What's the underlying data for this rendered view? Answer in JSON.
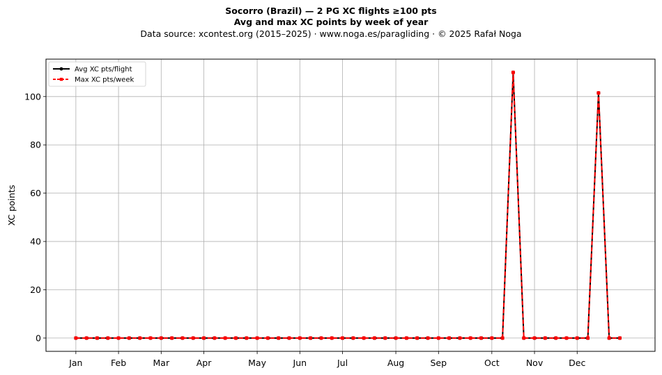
{
  "header": {
    "title_line1": "Socorro (Brazil)  —  2 PG XC flights ≥100 pts",
    "title_line2": "Avg and max XC points by week of year",
    "subtitle": "Data source: xcontest.org (2015–2025)  ·  www.noga.es/paragliding  ·  © 2025 Rafał Noga"
  },
  "chart_data": {
    "type": "line",
    "title": "Socorro (Brazil)  —  2 PG XC flights ≥100 pts",
    "subtitle": "Avg and max XC points by week of year",
    "xlabel": "",
    "ylabel": "XC points",
    "x": [
      1,
      2,
      3,
      4,
      5,
      6,
      7,
      8,
      9,
      10,
      11,
      12,
      13,
      14,
      15,
      16,
      17,
      18,
      19,
      20,
      21,
      22,
      23,
      24,
      25,
      26,
      27,
      28,
      29,
      30,
      31,
      32,
      33,
      34,
      35,
      36,
      37,
      38,
      39,
      40,
      41,
      42,
      43,
      44,
      45,
      46,
      47,
      48,
      49,
      50,
      51,
      52
    ],
    "xlim": [
      -1.8,
      55.3
    ],
    "ylim": [
      -5.5,
      115.5
    ],
    "yticks": [
      0,
      20,
      40,
      60,
      80,
      100
    ],
    "xticks": [
      {
        "label": "Jan",
        "week": 1
      },
      {
        "label": "Feb",
        "week": 5
      },
      {
        "label": "Mar",
        "week": 9
      },
      {
        "label": "Apr",
        "week": 13
      },
      {
        "label": "May",
        "week": 18
      },
      {
        "label": "Jun",
        "week": 22
      },
      {
        "label": "Jul",
        "week": 26
      },
      {
        "label": "Aug",
        "week": 31
      },
      {
        "label": "Sep",
        "week": 35
      },
      {
        "label": "Oct",
        "week": 40
      },
      {
        "label": "Nov",
        "week": 44
      },
      {
        "label": "Dec",
        "week": 48
      }
    ],
    "grid": true,
    "legend_position": "top-left",
    "series": [
      {
        "name": "Avg XC pts/flight",
        "color": "#000000",
        "style": "solid",
        "marker": "circle",
        "values": [
          0,
          0,
          0,
          0,
          0,
          0,
          0,
          0,
          0,
          0,
          0,
          0,
          0,
          0,
          0,
          0,
          0,
          0,
          0,
          0,
          0,
          0,
          0,
          0,
          0,
          0,
          0,
          0,
          0,
          0,
          0,
          0,
          0,
          0,
          0,
          0,
          0,
          0,
          0,
          0,
          0,
          110,
          0,
          0,
          0,
          0,
          0,
          0,
          0,
          101.5,
          0,
          0
        ]
      },
      {
        "name": "Max XC pts/week",
        "color": "#ff0000",
        "style": "dashed",
        "marker": "square",
        "values": [
          0,
          0,
          0,
          0,
          0,
          0,
          0,
          0,
          0,
          0,
          0,
          0,
          0,
          0,
          0,
          0,
          0,
          0,
          0,
          0,
          0,
          0,
          0,
          0,
          0,
          0,
          0,
          0,
          0,
          0,
          0,
          0,
          0,
          0,
          0,
          0,
          0,
          0,
          0,
          0,
          0,
          110,
          0,
          0,
          0,
          0,
          0,
          0,
          0,
          101.5,
          0,
          0
        ]
      }
    ]
  }
}
